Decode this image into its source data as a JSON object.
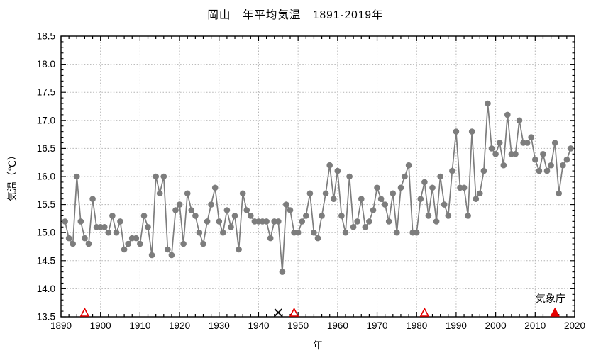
{
  "chart_data": {
    "type": "line",
    "title": "岡山　年平均気温　1891-2019年",
    "xlabel": "年",
    "ylabel": "気温（℃）",
    "source": "気象庁",
    "xlim": [
      1890,
      2020
    ],
    "ylim": [
      13.5,
      18.5
    ],
    "x_major_ticks": [
      1890,
      1900,
      1910,
      1920,
      1930,
      1940,
      1950,
      1960,
      1970,
      1980,
      1990,
      2000,
      2010,
      2020
    ],
    "y_major_ticks": [
      13.5,
      14.0,
      14.5,
      15.0,
      15.5,
      16.0,
      16.5,
      17.0,
      17.5,
      18.0,
      18.5
    ],
    "x_minor_step": 2,
    "y_minor_step": 0.1,
    "grid": "dotted at major ticks, both axes",
    "legend": "none",
    "x_start": 1891,
    "x_end": 2019,
    "values": [
      15.2,
      14.9,
      14.8,
      16.0,
      15.2,
      14.9,
      14.8,
      15.6,
      15.1,
      15.1,
      15.1,
      15.0,
      15.3,
      15.0,
      15.2,
      14.7,
      14.8,
      14.9,
      14.9,
      14.8,
      15.3,
      15.1,
      14.6,
      16.0,
      15.7,
      16.0,
      14.7,
      14.6,
      15.4,
      15.5,
      14.8,
      15.7,
      15.4,
      15.3,
      15.0,
      14.8,
      15.2,
      15.5,
      15.8,
      15.2,
      15.0,
      15.4,
      15.1,
      15.3,
      14.7,
      15.7,
      15.4,
      15.3,
      15.2,
      15.2,
      15.2,
      15.2,
      14.9,
      15.2,
      15.2,
      14.3,
      15.5,
      15.4,
      15.0,
      15.0,
      15.2,
      15.3,
      15.7,
      15.0,
      14.9,
      15.3,
      15.7,
      16.2,
      15.6,
      16.1,
      15.3,
      15.0,
      16.0,
      15.1,
      15.2,
      15.6,
      15.1,
      15.2,
      15.4,
      15.8,
      15.6,
      15.5,
      15.2,
      15.7,
      15.0,
      15.8,
      16.0,
      16.2,
      15.0,
      15.0,
      15.6,
      15.9,
      15.3,
      15.8,
      15.2,
      16.0,
      15.5,
      15.3,
      16.1,
      16.8,
      15.8,
      15.8,
      15.3,
      16.8,
      15.6,
      15.7,
      16.1,
      17.3,
      16.5,
      16.4,
      16.6,
      16.2,
      17.1,
      16.4,
      16.4,
      17.0,
      16.6,
      16.6,
      16.7,
      16.3,
      16.1,
      16.4,
      16.1,
      16.2,
      16.6,
      15.7,
      16.2,
      16.3,
      16.5
    ],
    "markers": {
      "relocation_open_triangle_years": [
        1896,
        1949,
        1982
      ],
      "relocation_filled_triangle_years": [
        2015
      ],
      "incomplete_data_cross_years": [
        1945
      ]
    },
    "colors": {
      "series": "#7d7d7d",
      "grid": "#b3b3b3",
      "axis": "#000000",
      "triangle_red": "#e60000",
      "cross_black": "#000000"
    }
  }
}
